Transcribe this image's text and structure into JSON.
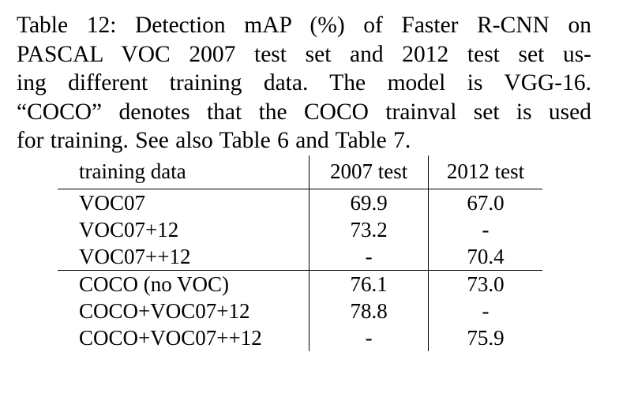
{
  "caption": {
    "lines": [
      "Table 12: Detection mAP (%) of Faster R-CNN on",
      "PASCAL VOC 2007 test set and 2012 test set us-",
      "ing different training data. The model is VGG-16.",
      "“COCO” denotes that the COCO trainval set is used",
      "for training. See also Table 6 and Table 7."
    ]
  },
  "table": {
    "headers": [
      "training data",
      "2007 test",
      "2012 test"
    ],
    "rows": [
      {
        "training_data": "VOC07",
        "test2007": "69.9",
        "test2012": "67.0"
      },
      {
        "training_data": "VOC07+12",
        "test2007": "73.2",
        "test2012": "-"
      },
      {
        "training_data": "VOC07++12",
        "test2007": "-",
        "test2012": "70.4"
      },
      {
        "training_data": "COCO (no VOC)",
        "test2007": "76.1",
        "test2012": "73.0"
      },
      {
        "training_data": "COCO+VOC07+12",
        "test2007": "78.8",
        "test2012": "-"
      },
      {
        "training_data": "COCO+VOC07++12",
        "test2007": "-",
        "test2012": "75.9"
      }
    ]
  }
}
